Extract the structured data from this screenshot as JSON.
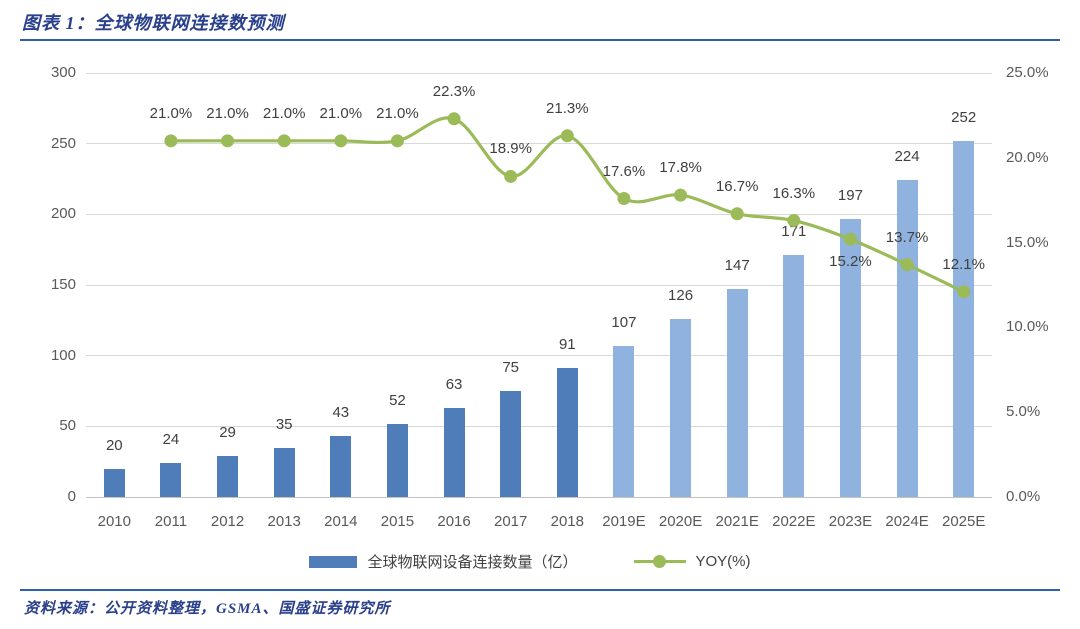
{
  "header": {
    "title": "图表 1：全球物联网连接数预测"
  },
  "footer": {
    "source": "资料来源：公开资料整理，GSMA、国盛证券研究所"
  },
  "legend": {
    "items": [
      {
        "label": "全球物联网设备连接数量（亿）",
        "swatch": "bar",
        "color": "#4E7DBA"
      },
      {
        "label": "YOY(%)",
        "swatch": "line-marker",
        "color": "#9BBB59"
      }
    ]
  },
  "chart_data": {
    "type": "bar",
    "combo": [
      "bar",
      "line"
    ],
    "title": "全球物联网连接数预测",
    "categories": [
      "2010",
      "2011",
      "2012",
      "2013",
      "2014",
      "2015",
      "2016",
      "2017",
      "2018",
      "2019E",
      "2020E",
      "2021E",
      "2022E",
      "2023E",
      "2024E",
      "2025E"
    ],
    "series": [
      {
        "name": "全球物联网设备连接数量（亿）",
        "type": "bar",
        "axis": "left",
        "values": [
          20,
          24,
          29,
          35,
          43,
          52,
          63,
          75,
          91,
          107,
          126,
          147,
          171,
          197,
          224,
          252
        ],
        "labels": [
          "20",
          "24",
          "29",
          "35",
          "43",
          "52",
          "63",
          "75",
          "91",
          "107",
          "126",
          "147",
          "171",
          "197",
          "224",
          "252"
        ],
        "color_historical": "#4E7DBA",
        "color_forecast": "#8FB2DE",
        "forecast_start_index": 9
      },
      {
        "name": "YOY(%)",
        "type": "line",
        "axis": "right",
        "values": [
          null,
          21.0,
          21.0,
          21.0,
          21.0,
          21.0,
          22.3,
          18.9,
          21.3,
          17.6,
          17.8,
          16.7,
          16.3,
          15.2,
          13.7,
          12.1
        ],
        "labels": [
          null,
          "21.0%",
          "21.0%",
          "21.0%",
          "21.0%",
          "21.0%",
          "22.3%",
          "18.9%",
          "21.3%",
          "17.6%",
          "17.8%",
          "16.7%",
          "16.3%",
          "15.2%",
          "13.7%",
          "12.1%"
        ],
        "labels_below_indices": [
          13
        ],
        "color": "#9BBB59"
      }
    ],
    "left_axis": {
      "min": 0,
      "max": 300,
      "tick_values": [
        0,
        50,
        100,
        150,
        200,
        250,
        300
      ],
      "tick_labels": [
        "0",
        "50",
        "100",
        "150",
        "200",
        "250",
        "300"
      ]
    },
    "right_axis": {
      "min": 0,
      "max": 25,
      "tick_values": [
        0,
        5,
        10,
        15,
        20,
        25
      ],
      "tick_labels": [
        "0.0%",
        "5.0%",
        "10.0%",
        "15.0%",
        "20.0%",
        "25.0%"
      ]
    },
    "grid": true,
    "legend_position": "bottom"
  },
  "colors": {
    "axis_text": "#595959",
    "data_label": "#404040",
    "gridline": "#D9D9D9",
    "accent_blue": "#2C5FAD",
    "title_text": "#2A408C"
  }
}
